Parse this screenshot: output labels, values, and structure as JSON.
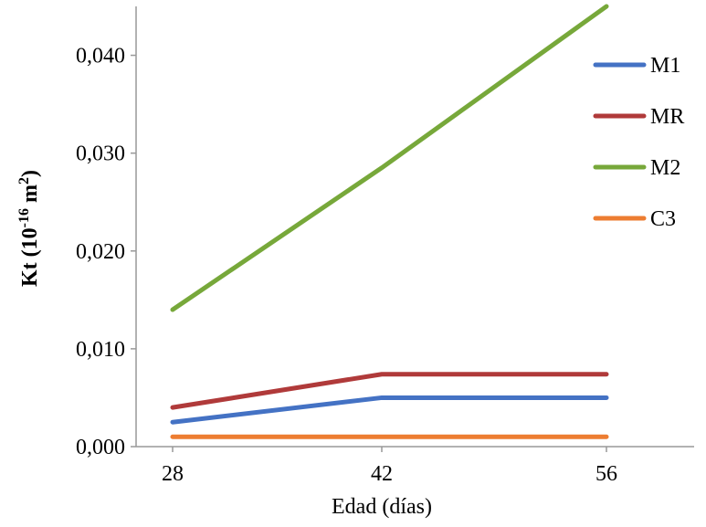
{
  "chart_data": {
    "type": "line",
    "xlabel": "Edad (días)",
    "ylabel": {
      "base": "Kt (10",
      "sup": "-16",
      "mid": " m",
      "sup2": "2",
      "end": ")"
    },
    "categories": [
      "28",
      "42",
      "56"
    ],
    "ylim": [
      0,
      0.045
    ],
    "yticks": [
      {
        "value": 0.0,
        "label": "0,000"
      },
      {
        "value": 0.01,
        "label": "0,010"
      },
      {
        "value": 0.02,
        "label": "0,020"
      },
      {
        "value": 0.03,
        "label": "0,030"
      },
      {
        "value": 0.04,
        "label": "0,040"
      }
    ],
    "grid": false,
    "legend_position": "right",
    "series": [
      {
        "name": "M1",
        "color": "#4472C4",
        "values": [
          0.0025,
          0.005,
          0.005
        ]
      },
      {
        "name": "MR",
        "color": "#B03A3A",
        "values": [
          0.004,
          0.0074,
          0.0074
        ]
      },
      {
        "name": "M2",
        "color": "#77A83A",
        "values": [
          0.014,
          0.0285,
          0.045
        ]
      },
      {
        "name": "C3",
        "color": "#ED7D31",
        "values": [
          0.001,
          0.001,
          0.001
        ]
      }
    ]
  }
}
